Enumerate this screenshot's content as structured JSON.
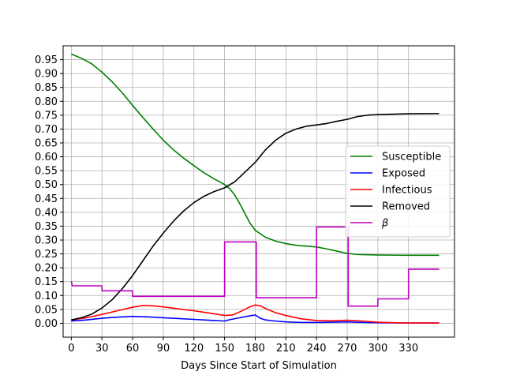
{
  "chart_data": {
    "type": "line",
    "xlabel": "Days Since Start of Simulation",
    "ylabel": "",
    "xlim": [
      -8,
      375
    ],
    "ylim": [
      -0.05,
      1.0
    ],
    "xticks": [
      0,
      30,
      60,
      90,
      120,
      150,
      180,
      210,
      240,
      270,
      300,
      330
    ],
    "yticks": [
      0.0,
      0.05,
      0.1,
      0.15,
      0.2,
      0.25,
      0.3,
      0.35,
      0.4,
      0.45,
      0.5,
      0.55,
      0.6,
      0.65,
      0.7,
      0.75,
      0.8,
      0.85,
      0.9,
      0.95
    ],
    "grid": true,
    "legend_position": "center-right",
    "series": [
      {
        "name": "Susceptible",
        "color": "#008000",
        "points": [
          [
            0,
            0.97
          ],
          [
            10,
            0.955
          ],
          [
            20,
            0.935
          ],
          [
            30,
            0.905
          ],
          [
            40,
            0.87
          ],
          [
            50,
            0.83
          ],
          [
            60,
            0.785
          ],
          [
            70,
            0.742
          ],
          [
            80,
            0.7
          ],
          [
            90,
            0.66
          ],
          [
            100,
            0.625
          ],
          [
            110,
            0.595
          ],
          [
            120,
            0.568
          ],
          [
            130,
            0.542
          ],
          [
            140,
            0.52
          ],
          [
            150,
            0.5
          ],
          [
            155,
            0.485
          ],
          [
            160,
            0.462
          ],
          [
            165,
            0.43
          ],
          [
            170,
            0.395
          ],
          [
            175,
            0.36
          ],
          [
            180,
            0.335
          ],
          [
            190,
            0.31
          ],
          [
            200,
            0.296
          ],
          [
            210,
            0.287
          ],
          [
            220,
            0.281
          ],
          [
            230,
            0.278
          ],
          [
            240,
            0.275
          ],
          [
            250,
            0.268
          ],
          [
            260,
            0.26
          ],
          [
            270,
            0.252
          ],
          [
            280,
            0.248
          ],
          [
            300,
            0.246
          ],
          [
            330,
            0.245
          ],
          [
            360,
            0.245
          ]
        ]
      },
      {
        "name": "Exposed",
        "color": "#0000ff",
        "points": [
          [
            0,
            0.008
          ],
          [
            15,
            0.012
          ],
          [
            30,
            0.018
          ],
          [
            45,
            0.022
          ],
          [
            60,
            0.025
          ],
          [
            75,
            0.023
          ],
          [
            90,
            0.02
          ],
          [
            105,
            0.017
          ],
          [
            120,
            0.014
          ],
          [
            135,
            0.011
          ],
          [
            150,
            0.008
          ],
          [
            155,
            0.013
          ],
          [
            165,
            0.02
          ],
          [
            175,
            0.027
          ],
          [
            180,
            0.03
          ],
          [
            185,
            0.018
          ],
          [
            190,
            0.012
          ],
          [
            200,
            0.008
          ],
          [
            210,
            0.005
          ],
          [
            225,
            0.003
          ],
          [
            240,
            0.003
          ],
          [
            255,
            0.004
          ],
          [
            270,
            0.005
          ],
          [
            285,
            0.003
          ],
          [
            300,
            0.002
          ],
          [
            330,
            0.001
          ],
          [
            360,
            0.001
          ]
        ]
      },
      {
        "name": "Infectious",
        "color": "#ff0000",
        "points": [
          [
            0,
            0.012
          ],
          [
            15,
            0.02
          ],
          [
            30,
            0.032
          ],
          [
            45,
            0.045
          ],
          [
            60,
            0.058
          ],
          [
            70,
            0.064
          ],
          [
            80,
            0.063
          ],
          [
            90,
            0.059
          ],
          [
            105,
            0.052
          ],
          [
            120,
            0.045
          ],
          [
            135,
            0.037
          ],
          [
            150,
            0.028
          ],
          [
            158,
            0.03
          ],
          [
            166,
            0.043
          ],
          [
            174,
            0.058
          ],
          [
            180,
            0.066
          ],
          [
            185,
            0.063
          ],
          [
            192,
            0.05
          ],
          [
            200,
            0.038
          ],
          [
            210,
            0.028
          ],
          [
            225,
            0.016
          ],
          [
            240,
            0.01
          ],
          [
            255,
            0.009
          ],
          [
            270,
            0.011
          ],
          [
            285,
            0.008
          ],
          [
            300,
            0.004
          ],
          [
            315,
            0.002
          ],
          [
            330,
            0.001
          ],
          [
            360,
            0.001
          ]
        ]
      },
      {
        "name": "Removed",
        "color": "#000000",
        "points": [
          [
            0,
            0.012
          ],
          [
            10,
            0.02
          ],
          [
            20,
            0.033
          ],
          [
            30,
            0.055
          ],
          [
            40,
            0.085
          ],
          [
            50,
            0.125
          ],
          [
            60,
            0.172
          ],
          [
            70,
            0.225
          ],
          [
            80,
            0.278
          ],
          [
            90,
            0.325
          ],
          [
            100,
            0.368
          ],
          [
            110,
            0.405
          ],
          [
            120,
            0.435
          ],
          [
            130,
            0.458
          ],
          [
            140,
            0.475
          ],
          [
            150,
            0.488
          ],
          [
            160,
            0.51
          ],
          [
            170,
            0.545
          ],
          [
            180,
            0.58
          ],
          [
            190,
            0.625
          ],
          [
            200,
            0.66
          ],
          [
            210,
            0.685
          ],
          [
            220,
            0.7
          ],
          [
            230,
            0.71
          ],
          [
            240,
            0.715
          ],
          [
            250,
            0.72
          ],
          [
            260,
            0.728
          ],
          [
            270,
            0.735
          ],
          [
            280,
            0.745
          ],
          [
            290,
            0.75
          ],
          [
            300,
            0.752
          ],
          [
            330,
            0.755
          ],
          [
            360,
            0.756
          ]
        ]
      },
      {
        "name": "β",
        "color": "#bf00bf",
        "points": [
          [
            0,
            0.152
          ],
          [
            1,
            0.135
          ],
          [
            30,
            0.135
          ],
          [
            30,
            0.117
          ],
          [
            60,
            0.117
          ],
          [
            60,
            0.097
          ],
          [
            150,
            0.097
          ],
          [
            150,
            0.293
          ],
          [
            181,
            0.293
          ],
          [
            181,
            0.092
          ],
          [
            240,
            0.092
          ],
          [
            240,
            0.347
          ],
          [
            271,
            0.347
          ],
          [
            271,
            0.062
          ],
          [
            300,
            0.062
          ],
          [
            300,
            0.088
          ],
          [
            330,
            0.088
          ],
          [
            330,
            0.195
          ],
          [
            360,
            0.195
          ]
        ]
      }
    ]
  }
}
